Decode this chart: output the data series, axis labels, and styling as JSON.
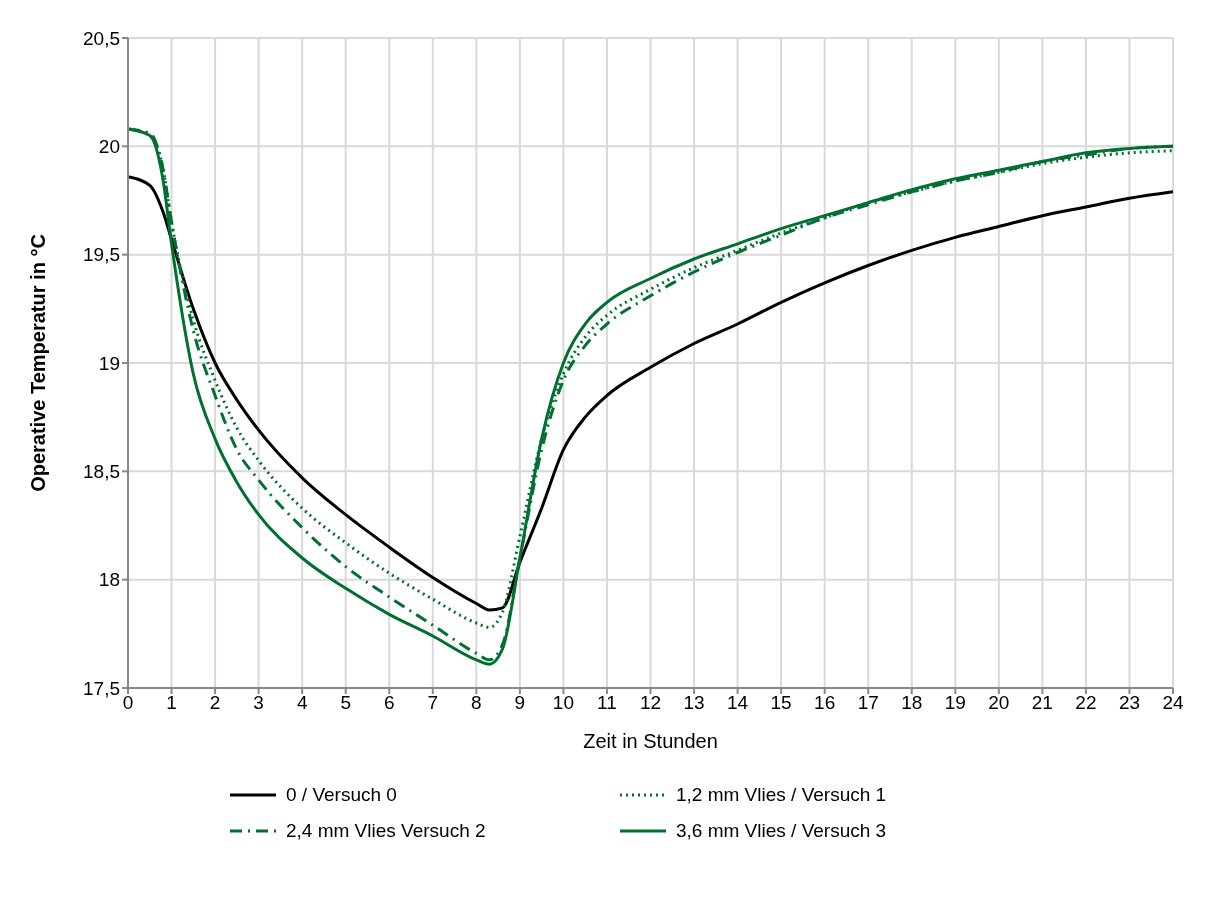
{
  "chart_data": {
    "type": "line",
    "xlabel": "Zeit in Stunden",
    "ylabel": "Operative Temperatur in °C",
    "xlim": [
      0,
      24
    ],
    "xticks": [
      0,
      1,
      2,
      3,
      4,
      5,
      6,
      7,
      8,
      9,
      10,
      11,
      12,
      13,
      14,
      15,
      16,
      17,
      18,
      19,
      20,
      21,
      22,
      23,
      24
    ],
    "ylim": [
      17.5,
      20.5
    ],
    "yticks": [
      {
        "value": 17.5,
        "label": "17,5"
      },
      {
        "value": 18,
        "label": "18"
      },
      {
        "value": 18.5,
        "label": "18,5"
      },
      {
        "value": 19,
        "label": "19"
      },
      {
        "value": 19.5,
        "label": "19,5"
      },
      {
        "value": 20,
        "label": "20"
      },
      {
        "value": 20.5,
        "label": "20,5"
      }
    ],
    "grid": true,
    "legend": "bottom",
    "marker": "none",
    "x": [
      0,
      0.5,
      0.8,
      1,
      1.5,
      2,
      2.5,
      3,
      4,
      5,
      6,
      7,
      8,
      8.3,
      8.6,
      9,
      9.5,
      10,
      10.5,
      11,
      12,
      13,
      14,
      15,
      16,
      17,
      18,
      19,
      20,
      21,
      22,
      23,
      24
    ],
    "series": [
      {
        "name": "0 / Versuch 0",
        "color": "#000000",
        "line_style": "solid",
        "values": [
          19.86,
          19.82,
          19.7,
          19.57,
          19.25,
          19.0,
          18.83,
          18.69,
          18.47,
          18.3,
          18.15,
          18.01,
          17.89,
          17.86,
          17.87,
          18.08,
          18.33,
          18.6,
          18.75,
          18.85,
          18.98,
          19.09,
          19.18,
          19.28,
          19.37,
          19.45,
          19.52,
          19.58,
          19.63,
          19.68,
          19.72,
          19.76,
          19.79
        ]
      },
      {
        "name": "1,2 mm Vlies / Versuch 1",
        "color": "#007030",
        "line_style": "dotted",
        "values": [
          20.08,
          20.05,
          19.9,
          19.65,
          19.2,
          18.92,
          18.7,
          18.55,
          18.33,
          18.17,
          18.03,
          17.91,
          17.8,
          17.78,
          17.85,
          18.2,
          18.65,
          18.95,
          19.12,
          19.22,
          19.34,
          19.44,
          19.52,
          19.6,
          19.67,
          19.74,
          19.79,
          19.84,
          19.88,
          19.92,
          19.95,
          19.97,
          19.98
        ]
      },
      {
        "name": "2,4 mm Vlies Versuch 2",
        "color": "#007030",
        "line_style": "dashdot",
        "values": [
          20.08,
          20.06,
          19.9,
          19.65,
          19.15,
          18.85,
          18.6,
          18.46,
          18.24,
          18.06,
          17.92,
          17.79,
          17.66,
          17.63,
          17.7,
          18.1,
          18.6,
          18.92,
          19.08,
          19.18,
          19.31,
          19.42,
          19.51,
          19.59,
          19.67,
          19.73,
          19.79,
          19.84,
          19.88,
          19.93,
          19.96,
          19.99,
          20.0
        ]
      },
      {
        "name": "3,6 mm Vlies / Versuch 3",
        "color": "#007030",
        "line_style": "solid",
        "values": [
          20.08,
          20.05,
          19.85,
          19.55,
          18.95,
          18.65,
          18.45,
          18.3,
          18.1,
          17.96,
          17.84,
          17.74,
          17.63,
          17.61,
          17.68,
          18.1,
          18.65,
          19.0,
          19.18,
          19.28,
          19.39,
          19.48,
          19.55,
          19.62,
          19.68,
          19.74,
          19.8,
          19.85,
          19.89,
          19.93,
          19.97,
          19.99,
          20.0
        ]
      }
    ]
  }
}
